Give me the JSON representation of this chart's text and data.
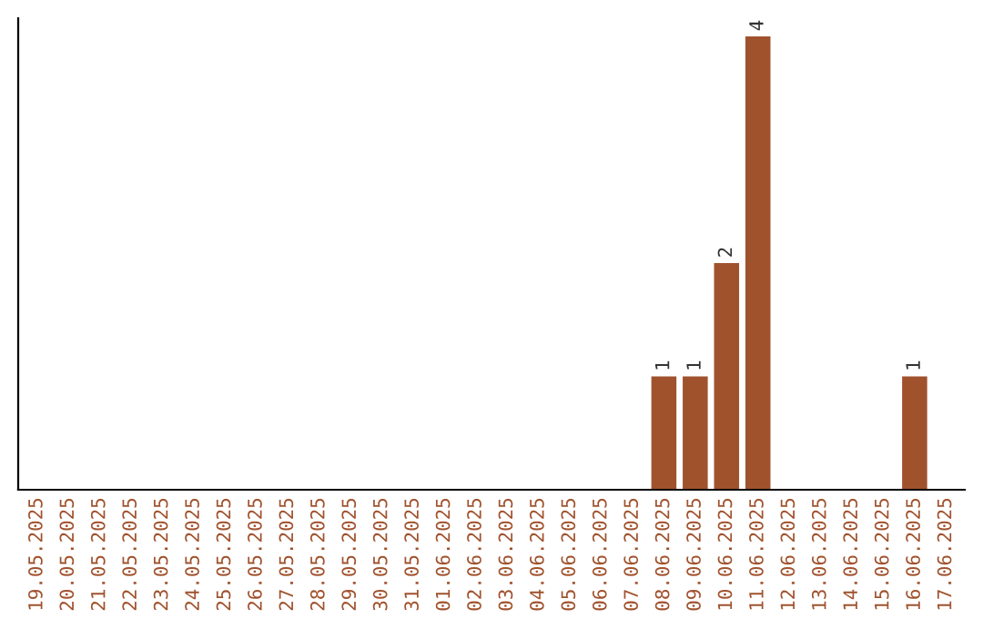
{
  "chart_data": {
    "type": "bar",
    "categories": [
      "19.05.2025",
      "20.05.2025",
      "21.05.2025",
      "22.05.2025",
      "23.05.2025",
      "24.05.2025",
      "25.05.2025",
      "26.05.2025",
      "27.05.2025",
      "28.05.2025",
      "29.05.2025",
      "30.05.2025",
      "31.05.2025",
      "01.06.2025",
      "02.06.2025",
      "03.06.2025",
      "04.06.2025",
      "05.06.2025",
      "06.06.2025",
      "07.06.2025",
      "08.06.2025",
      "09.06.2025",
      "10.06.2025",
      "11.06.2025",
      "12.06.2025",
      "13.06.2025",
      "14.06.2025",
      "15.06.2025",
      "16.06.2025",
      "17.06.2025"
    ],
    "values": [
      null,
      null,
      null,
      null,
      null,
      null,
      null,
      null,
      null,
      null,
      null,
      null,
      null,
      null,
      null,
      null,
      null,
      null,
      null,
      null,
      1,
      1,
      2,
      4,
      null,
      null,
      null,
      null,
      1,
      null
    ],
    "data_labels": true,
    "color": "#a0522d",
    "tick_labels": "x",
    "grid": false,
    "legend": false
  }
}
